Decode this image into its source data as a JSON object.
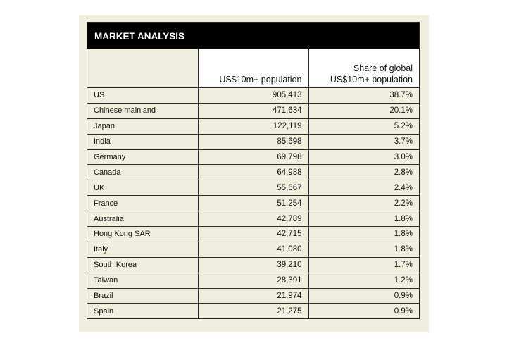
{
  "title": "MARKET ANALYSIS",
  "columns": [
    "",
    "US$10m+ population",
    "Share of global US$10m+ population"
  ],
  "col3_line1": "Share of global",
  "col3_line2": "US$10m+ population",
  "rows": [
    [
      "US",
      "905,413",
      "38.7%"
    ],
    [
      "Chinese mainland",
      "471,634",
      "20.1%"
    ],
    [
      "Japan",
      "122,119",
      "5.2%"
    ],
    [
      "India",
      "85,698",
      "3.7%"
    ],
    [
      "Germany",
      "69,798",
      "3.0%"
    ],
    [
      "Canada",
      "64,988",
      "2.8%"
    ],
    [
      "UK",
      "55,667",
      "2.4%"
    ],
    [
      "France",
      "51,254",
      "2.2%"
    ],
    [
      "Australia",
      "42,789",
      "1.8%"
    ],
    [
      "Hong Kong SAR",
      "42,715",
      "1.8%"
    ],
    [
      "Italy",
      "41,080",
      "1.8%"
    ],
    [
      "South Korea",
      "39,210",
      "1.7%"
    ],
    [
      "Taiwan",
      "28,391",
      "1.2%"
    ],
    [
      "Brazil",
      "21,974",
      "0.9%"
    ],
    [
      "Spain",
      "21,275",
      "0.9%"
    ]
  ]
}
